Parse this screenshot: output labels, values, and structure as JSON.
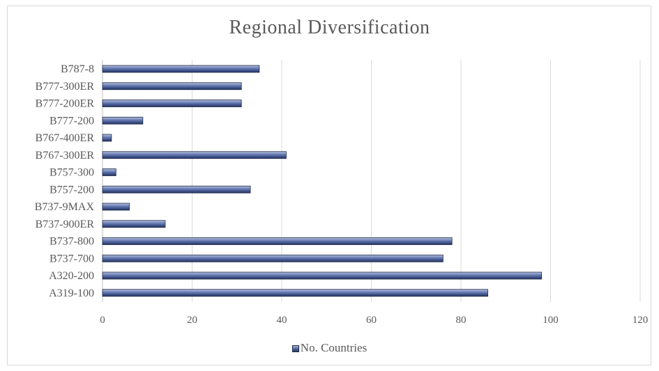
{
  "chart_data": {
    "type": "bar",
    "orientation": "horizontal",
    "title": "Regional Diversification",
    "xlabel": "",
    "ylabel": "",
    "xlim": [
      0,
      120
    ],
    "x_ticks": [
      0,
      20,
      40,
      60,
      80,
      100,
      120
    ],
    "grid": "vertical",
    "legend_position": "bottom",
    "categories": [
      "B787-8",
      "B777-300ER",
      "B777-200ER",
      "B777-200",
      "B767-400ER",
      "B767-300ER",
      "B757-300",
      "B757-200",
      "B737-9MAX",
      "B737-900ER",
      "B737-800",
      "B737-700",
      "A320-200",
      "A319-100"
    ],
    "series": [
      {
        "name": "No. Countries",
        "color": "#4a5f95",
        "values": [
          35,
          31,
          31,
          9,
          2,
          41,
          3,
          33,
          6,
          14,
          78,
          76,
          98,
          86
        ]
      }
    ]
  }
}
